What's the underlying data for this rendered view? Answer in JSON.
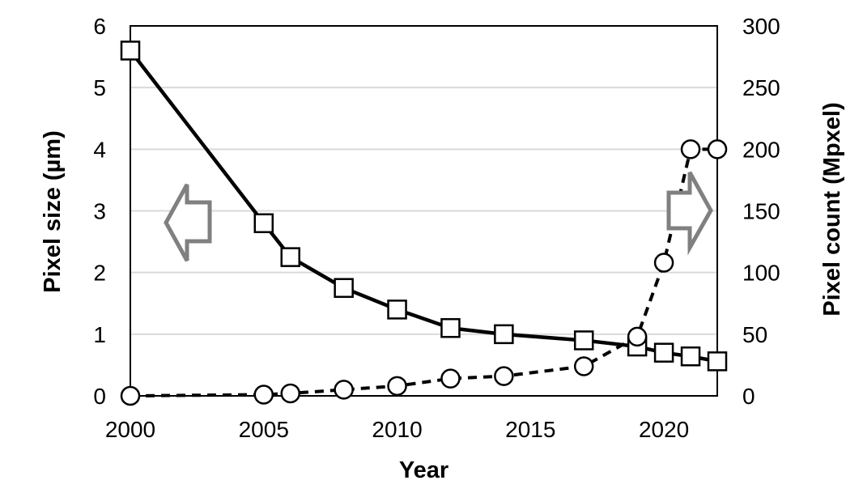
{
  "chart_data": {
    "type": "line",
    "xlabel": "Year",
    "ylabel_left": "Pixel size (µm)",
    "ylabel_right": "Pixel count (Mpxel)",
    "xlim": [
      2000,
      2022
    ],
    "ylim_left": [
      0,
      6
    ],
    "ylim_right": [
      0,
      300
    ],
    "x_ticks": [
      "2000",
      "2005",
      "2010",
      "2015",
      "2020"
    ],
    "y_left_ticks": [
      "0",
      "1",
      "2",
      "3",
      "4",
      "5",
      "6"
    ],
    "y_right_ticks": [
      "0",
      "50",
      "100",
      "150",
      "200",
      "250",
      "300"
    ],
    "grid": "horizontal",
    "series": [
      {
        "axis": "left",
        "marker": "square",
        "line_style": "solid",
        "x": [
          2000,
          2005,
          2006,
          2008,
          2010,
          2012,
          2014,
          2017,
          2019,
          2020,
          2021,
          2022
        ],
        "values": [
          5.6,
          2.8,
          2.25,
          1.75,
          1.4,
          1.1,
          1.0,
          0.9,
          0.8,
          0.7,
          0.64,
          0.56
        ]
      },
      {
        "axis": "right",
        "marker": "circle",
        "line_style": "dashed",
        "x": [
          2000,
          2005,
          2006,
          2008,
          2010,
          2012,
          2014,
          2017,
          2019,
          2020,
          2021,
          2022
        ],
        "values": [
          0,
          1,
          2,
          5,
          8,
          14,
          16,
          24,
          48,
          108,
          200,
          200
        ]
      }
    ],
    "annotations": [
      {
        "name": "left-axis-arrow",
        "direction": "left",
        "color": "#808080"
      },
      {
        "name": "right-axis-arrow",
        "direction": "right",
        "color": "#808080"
      }
    ],
    "colors": {
      "line": "#000000",
      "grid": "#d9d9d9",
      "arrow": "#808080"
    }
  }
}
